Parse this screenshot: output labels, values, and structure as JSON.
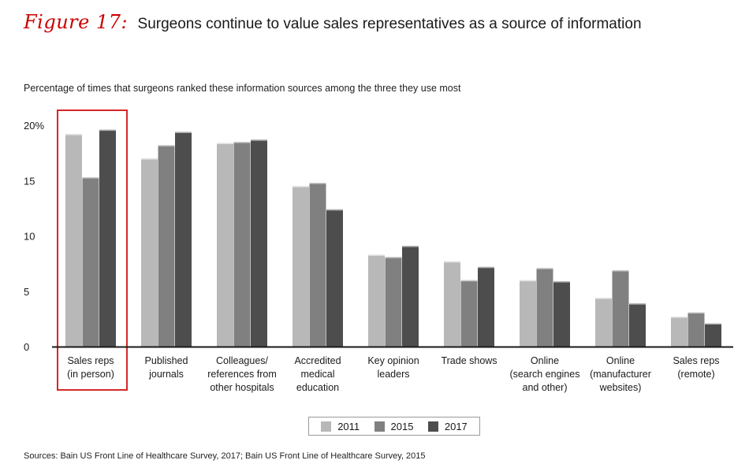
{
  "figure": {
    "label": "Figure 17:",
    "title": "Surgeons continue to value sales representatives as a source of information",
    "subtitle": "Percentage of times that surgeons ranked these information sources among the three they use most",
    "source": "Sources: Bain US Front Line of Healthcare Survey, 2017; Bain US Front Line of Healthcare Survey, 2015"
  },
  "chart_data": {
    "type": "bar",
    "title": "Surgeons continue to value sales representatives as a source of information",
    "ylim": [
      0,
      20
    ],
    "yticks": [
      0,
      5,
      10,
      15,
      20
    ],
    "ytick_labels": [
      "0",
      "5",
      "10",
      "15",
      "20%"
    ],
    "grid": false,
    "legend": "bottom-center",
    "categories": [
      [
        "Sales reps",
        "(in person)"
      ],
      [
        "Published",
        "journals"
      ],
      [
        "Colleagues/",
        "references from",
        "other hospitals"
      ],
      [
        "Accredited",
        "medical",
        "education"
      ],
      [
        "Key opinion",
        "leaders"
      ],
      [
        "Trade shows"
      ],
      [
        "Online",
        "(search engines",
        "and other)"
      ],
      [
        "Online",
        "(manufacturer",
        "websites)"
      ],
      [
        "Sales reps",
        "(remote)"
      ]
    ],
    "series": [
      {
        "name": "2011",
        "color": "#b8b8b8",
        "values": [
          19.2,
          17.0,
          18.4,
          14.5,
          8.3,
          7.7,
          6.0,
          4.4,
          2.7
        ]
      },
      {
        "name": "2015",
        "color": "#808080",
        "values": [
          15.3,
          18.2,
          18.5,
          14.8,
          8.1,
          6.0,
          7.1,
          6.9,
          3.1
        ]
      },
      {
        "name": "2017",
        "color": "#4d4d4d",
        "values": [
          19.6,
          19.4,
          18.7,
          12.4,
          9.1,
          7.2,
          5.9,
          3.9,
          2.1
        ]
      }
    ],
    "highlight_category_index": 0,
    "highlight_color": "#d62828"
  }
}
